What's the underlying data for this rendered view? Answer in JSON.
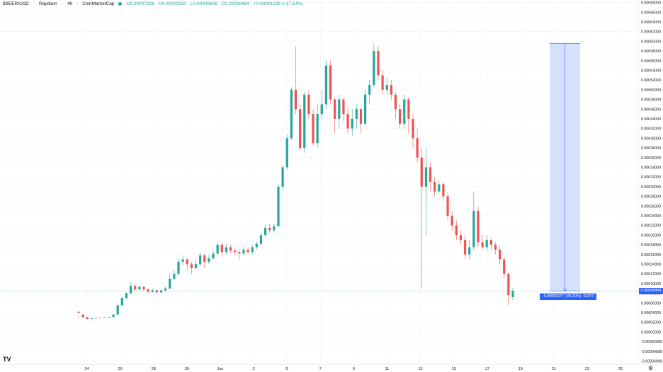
{
  "legend": {
    "symbol": "$BEER/USD",
    "exchange": "Raydium",
    "interval": "4h",
    "source": "CoinMarketCap",
    "open": "O0.00007226",
    "high": "H0.00009150",
    "low": "L0.00006606",
    "close": "C0.00008464",
    "change": "+0.00001239 (+17.14%)"
  },
  "current_price_label": "0.00008464",
  "measure_label": "-0.00051077 (-86.10%) -51077",
  "logo_text": "TV",
  "settings_icon": "gear-icon",
  "colors": {
    "up": "#26a69a",
    "down": "#ef5350",
    "measure_fill": "#cfdcfb",
    "measure_line": "#2962ff"
  },
  "chart_data": {
    "type": "candlestick",
    "title": "",
    "y_ticks": [
      "0.00068000",
      "0.00066000",
      "0.00064000",
      "0.00062000",
      "0.00060000",
      "0.00058000",
      "0.00056000",
      "0.00054000",
      "0.00052000",
      "0.00050000",
      "0.00048000",
      "0.00046000",
      "0.00044000",
      "0.00042000",
      "0.00040000",
      "0.00038000",
      "0.00036000",
      "0.00034000",
      "0.00032000",
      "0.00030000",
      "0.00028000",
      "0.00026000",
      "0.00024000",
      "0.00022000",
      "0.00020000",
      "0.00018000",
      "0.00016000",
      "0.00014000",
      "0.00012000",
      "0.00010000",
      "0.00008000",
      "0.00006000",
      "0.00004000",
      "0.00002000",
      "0.00000000",
      "-0.00002000",
      "-0.00004000",
      "-0.00006000"
    ],
    "x_ticks": [
      "24",
      "26",
      "28",
      "30",
      "Jun",
      "3",
      "5",
      "7",
      "9",
      "11",
      "13",
      "15",
      "17",
      "19",
      "21",
      "23",
      "25"
    ],
    "ylim": [
      -6.6e-05,
      0.00068
    ],
    "candles": [
      [
        4.2e-05,
        3.9e-05,
        3.3e-05,
        3.1e-05
      ],
      [
        3.6e-05,
        3e-05,
        3.2e-05,
        2.9e-05
      ],
      [
        3.1e-05,
        2.7e-05,
        2.8e-05,
        2.5e-05
      ],
      [
        2.8e-05,
        2.8e-05,
        2.9e-05,
        2.7e-05
      ],
      [
        2.9e-05,
        2.8e-05,
        2.9e-05,
        2.8e-05
      ],
      [
        2.9e-05,
        3e-05,
        3.1e-05,
        2.9e-05
      ],
      [
        3e-05,
        2.9e-05,
        3.1e-05,
        2.9e-05
      ],
      [
        3e-05,
        3.1e-05,
        3.2e-05,
        3e-05
      ],
      [
        3.1e-05,
        3.6e-05,
        3.7e-05,
        3e-05
      ],
      [
        3.6e-05,
        5.5e-05,
        5.7e-05,
        3.5e-05
      ],
      [
        5.5e-05,
        7e-05,
        7.2e-05,
        5.3e-05
      ],
      [
        7e-05,
        8e-05,
        8.2e-05,
        6.8e-05
      ],
      [
        8e-05,
        9.5e-05,
        0.000102,
        7.8e-05
      ],
      [
        9.5e-05,
        8.8e-05,
        9.7e-05,
        8.4e-05
      ],
      [
        8.8e-05,
        9.3e-05,
        9.6e-05,
        8.6e-05
      ],
      [
        9.3e-05,
        8.8e-05,
        9.5e-05,
        8.4e-05
      ],
      [
        8.8e-05,
        8.3e-05,
        9e-05,
        8.1e-05
      ],
      [
        8.3e-05,
        8.6e-05,
        8.9e-05,
        8.1e-05
      ],
      [
        8.6e-05,
        8.2e-05,
        8.8e-05,
        8e-05
      ],
      [
        8.2e-05,
        8.6e-05,
        8.8e-05,
        8e-05
      ],
      [
        8.6e-05,
        9e-05,
        9.3e-05,
        8.3e-05
      ],
      [
        9e-05,
        0.00011,
        0.000118,
        8.8e-05
      ],
      [
        0.00011,
        0.00012,
        0.000128,
        0.000106
      ],
      [
        0.00012,
        0.000145,
        0.000152,
        0.000116
      ],
      [
        0.000145,
        0.00015,
        0.000158,
        0.000138
      ],
      [
        0.00015,
        0.00014,
        0.000152,
        0.000128
      ],
      [
        0.00014,
        0.000132,
        0.000145,
        0.00012
      ],
      [
        0.000132,
        0.00014,
        0.000148,
        0.000128
      ],
      [
        0.00014,
        0.000158,
        0.000164,
        0.000136
      ],
      [
        0.000158,
        0.000145,
        0.000162,
        0.000132
      ],
      [
        0.000145,
        0.000152,
        0.00016,
        0.00014
      ],
      [
        0.000152,
        0.000162,
        0.000168,
        0.000148
      ],
      [
        0.000162,
        0.00018,
        0.000188,
        0.000158
      ],
      [
        0.00018,
        0.000165,
        0.000185,
        0.000156
      ],
      [
        0.000165,
        0.000175,
        0.000182,
        0.00016
      ],
      [
        0.000175,
        0.000168,
        0.00018,
        0.000162
      ],
      [
        0.000168,
        0.000165,
        0.000172,
        0.000158
      ],
      [
        0.000165,
        0.000162,
        0.00017,
        0.00015
      ],
      [
        0.000162,
        0.00017,
        0.000176,
        0.000158
      ],
      [
        0.00017,
        0.000165,
        0.000175,
        0.00016
      ],
      [
        0.000165,
        0.000175,
        0.00018,
        0.00016
      ],
      [
        0.000175,
        0.000182,
        0.000186,
        0.00017
      ],
      [
        0.000182,
        0.0002,
        0.000206,
        0.000178
      ],
      [
        0.0002,
        0.000215,
        0.000222,
        0.000195
      ],
      [
        0.000215,
        0.00021,
        0.000222,
        0.000205
      ],
      [
        0.00021,
        0.000218,
        0.000224,
        0.000205
      ],
      [
        0.000218,
        0.0003,
        0.000305,
        0.000285
      ],
      [
        0.0003,
        0.00034,
        0.000345,
        0.000292
      ],
      [
        0.00034,
        0.0004,
        0.000408,
        0.000335
      ],
      [
        0.0004,
        0.0005,
        0.000505,
        0.000396
      ],
      [
        0.0005,
        0.00046,
        0.00059,
        0.00045
      ],
      [
        0.00046,
        0.00038,
        0.000472,
        0.000375
      ],
      [
        0.00038,
        0.00049,
        0.000495,
        0.00037
      ],
      [
        0.00049,
        0.00045,
        0.000498,
        0.00044
      ],
      [
        0.00045,
        0.00039,
        0.00046,
        0.000385
      ],
      [
        0.00039,
        0.00045,
        0.00047,
        0.00038
      ],
      [
        0.00045,
        0.00047,
        0.0005,
        0.00044
      ],
      [
        0.00047,
        0.00055,
        0.00056,
        0.00046
      ],
      [
        0.00055,
        0.00048,
        0.00056,
        0.00047
      ],
      [
        0.00048,
        0.00044,
        0.000485,
        0.00041
      ],
      [
        0.00044,
        0.00048,
        0.00049,
        0.00042
      ],
      [
        0.00048,
        0.00045,
        0.000485,
        0.000435
      ],
      [
        0.00045,
        0.00042,
        0.00046,
        0.00041
      ],
      [
        0.00042,
        0.00044,
        0.00046,
        0.000405
      ],
      [
        0.00044,
        0.00046,
        0.00047,
        0.00042
      ],
      [
        0.00046,
        0.00043,
        0.000462,
        0.00041
      ],
      [
        0.00043,
        0.00049,
        0.0005,
        0.000425
      ],
      [
        0.00049,
        0.00051,
        0.00052,
        0.00047
      ],
      [
        0.00051,
        0.00058,
        0.000595,
        0.000505
      ],
      [
        0.00058,
        0.00053,
        0.00059,
        0.00052
      ],
      [
        0.00053,
        0.0005,
        0.00054,
        0.00049
      ],
      [
        0.0005,
        0.00051,
        0.000525,
        0.00049
      ],
      [
        0.00051,
        0.00049,
        0.00052,
        0.00048
      ],
      [
        0.00049,
        0.00046,
        0.000495,
        0.00044
      ],
      [
        0.00046,
        0.00043,
        0.00047,
        0.00042
      ],
      [
        0.00043,
        0.00048,
        0.00049,
        0.00042
      ],
      [
        0.00048,
        0.00044,
        0.000485,
        0.00041
      ],
      [
        0.00044,
        0.0004,
        0.00045,
        0.00038
      ],
      [
        0.0004,
        0.00036,
        0.00042,
        0.00035
      ],
      [
        0.00036,
        0.0003,
        0.00038,
        8.9e-05
      ],
      [
        0.0003,
        0.00034,
        0.00038,
        0.0002
      ],
      [
        0.00034,
        0.00031,
        0.00035,
        0.00029
      ],
      [
        0.00031,
        0.00029,
        0.00032,
        0.00028
      ],
      [
        0.00029,
        0.000305,
        0.000315,
        0.000285
      ],
      [
        0.000305,
        0.00028,
        0.00031,
        0.00027
      ],
      [
        0.00028,
        0.00024,
        0.00029,
        0.00023
      ],
      [
        0.00024,
        0.00022,
        0.00025,
        0.00021
      ],
      [
        0.00022,
        0.0002,
        0.00023,
        0.00019
      ],
      [
        0.0002,
        0.00019,
        0.00021,
        0.00018
      ],
      [
        0.00019,
        0.00016,
        0.0002,
        0.00015
      ],
      [
        0.00016,
        0.000175,
        0.00019,
        0.00015
      ],
      [
        0.000175,
        0.00025,
        0.00029,
        0.00017
      ],
      [
        0.00025,
        0.000185,
        0.000258,
        0.000175
      ],
      [
        0.000185,
        0.000175,
        0.0002,
        0.00017
      ],
      [
        0.000175,
        0.00019,
        0.0002,
        0.000168
      ],
      [
        0.00019,
        0.00018,
        0.000195,
        0.00017
      ],
      [
        0.00018,
        0.00017,
        0.000185,
        0.00016
      ],
      [
        0.00017,
        0.00015,
        0.000178,
        0.00014
      ],
      [
        0.00015,
        0.00012,
        0.000155,
        0.00011
      ],
      [
        0.00012,
        7.6e-05,
        0.000125,
        5.5e-05
      ],
      [
        7.2e-05,
        8.5e-05,
        9.2e-05,
        6.6e-05
      ]
    ],
    "measure": {
      "start_date": "21 Jun (approx.)",
      "top_price": 0.00059541,
      "bottom_price": 8.464e-05,
      "change": -0.00051077,
      "change_pct": -86.1
    }
  }
}
